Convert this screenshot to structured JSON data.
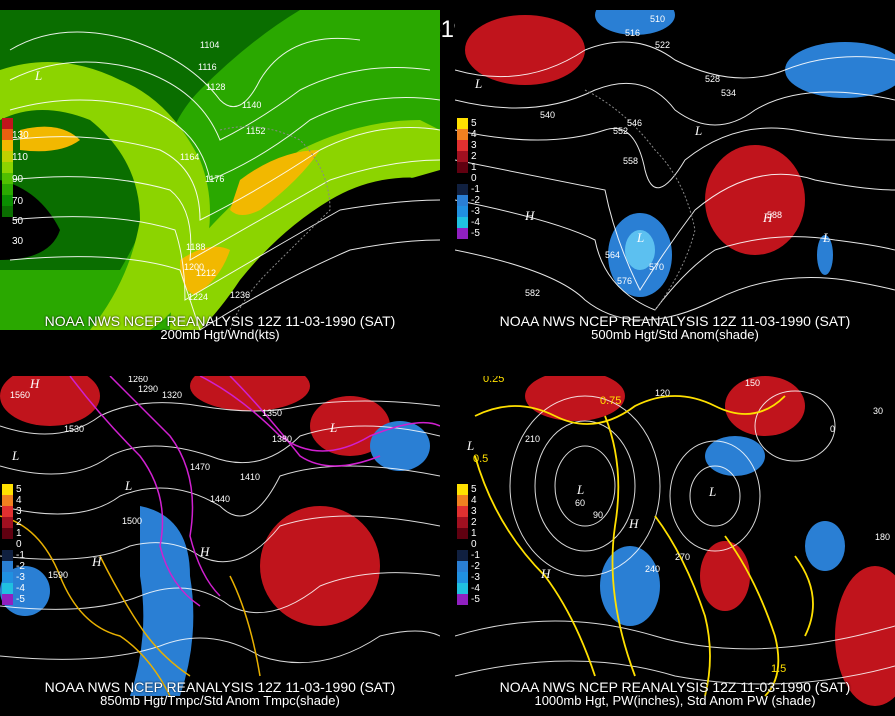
{
  "title": "12Z 11-03-1990 (SAT)",
  "panels": [
    {
      "id": "p1",
      "line1": "NOAA NWS NCEP REANALYSIS 12Z 11-03-1990 (SAT)",
      "line2": "200mb Hgt/Wnd(kts)",
      "legend": [
        "130",
        "110",
        "90",
        "70",
        "50",
        "30"
      ],
      "contour_labels": [
        "1104",
        "1116",
        "1128",
        "1140",
        "1152",
        "1164",
        "1176",
        "1188",
        "1200",
        "1212",
        "1224",
        "1236"
      ],
      "centers": [
        "L"
      ]
    },
    {
      "id": "p2",
      "line1": "NOAA NWS NCEP REANALYSIS 12Z 11-03-1990 (SAT)",
      "line2": "500mb Hgt/Std Anom(shade)",
      "legend": [
        "5",
        "4",
        "3",
        "2",
        "1",
        "0",
        "-1",
        "-2",
        "-3",
        "-4",
        "-5"
      ],
      "contour_labels": [
        "510",
        "516",
        "522",
        "528",
        "534",
        "540",
        "546",
        "552",
        "558",
        "564",
        "570",
        "576",
        "582",
        "588"
      ],
      "centers": [
        "L",
        "L",
        "H",
        "L",
        "H",
        "L"
      ]
    },
    {
      "id": "p3",
      "line1": "NOAA NWS NCEP REANALYSIS 12Z 11-03-1990 (SAT)",
      "line2": "850mb Hgt/Tmpc/Std Anom Tmpc(shade)",
      "legend": [
        "5",
        "4",
        "3",
        "2",
        "1",
        "0",
        "-1",
        "-2",
        "-3",
        "-4",
        "-5"
      ],
      "contour_labels": [
        "1260",
        "1290",
        "1320",
        "1350",
        "1380",
        "1410",
        "1440",
        "1470",
        "1500",
        "1530",
        "1560",
        "1590"
      ],
      "centers": [
        "H",
        "L",
        "L",
        "H",
        "H",
        "L"
      ]
    },
    {
      "id": "p4",
      "line1": "NOAA NWS NCEP REANALYSIS 12Z 11-03-1990 (SAT)",
      "line2": "1000mb Hgt, PW(inches), Std Anom PW (shade)",
      "legend": [
        "5",
        "4",
        "3",
        "2",
        "1",
        "0",
        "-1",
        "-2",
        "-3",
        "-4",
        "-5"
      ],
      "contour_labels": [
        "0",
        "30",
        "60",
        "90",
        "120",
        "150",
        "180",
        "210",
        "240",
        "270"
      ],
      "pw_labels": [
        "0.25",
        "0.5",
        "0.75",
        "1.5"
      ],
      "centers": [
        "L",
        "L",
        "H",
        "L",
        "H"
      ]
    }
  ],
  "colors": {
    "wind_light": "#8cd400",
    "wind_mid": "#2aa800",
    "wind_dark": "#0a6e00",
    "wind_peak": "#f2b800",
    "anom_pos": "#c0141c",
    "anom_neg": "#2a7fd4",
    "pw_contour": "#ffe000",
    "temp_contour": "#d020d0"
  }
}
